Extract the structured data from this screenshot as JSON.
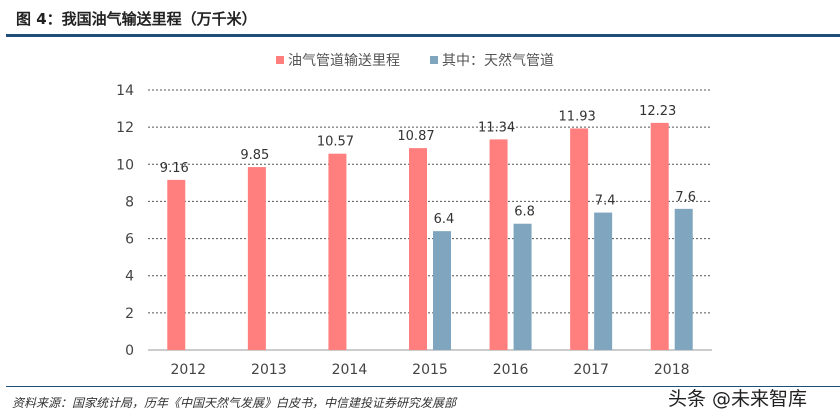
{
  "title": "图 4：我国油气输送里程（万千米）",
  "source": "资料来源：国家统计局，历年《中国天然气发展》白皮书，中信建投证券研究发展部",
  "watermark": "头条 @未来智库",
  "chart_data": {
    "type": "bar",
    "title": "",
    "categories": [
      "2012",
      "2013",
      "2014",
      "2015",
      "2016",
      "2017",
      "2018"
    ],
    "series": [
      {
        "name": "油气管道输送里程",
        "color": "#ff7f7f",
        "values": [
          9.16,
          9.85,
          10.57,
          10.87,
          11.34,
          11.93,
          12.23
        ]
      },
      {
        "name": "其中：天然气管道",
        "color": "#7fa5bf",
        "values": [
          null,
          null,
          null,
          6.4,
          6.8,
          7.4,
          7.6
        ]
      }
    ],
    "ylim": [
      0,
      14
    ],
    "yticks": [
      0,
      2,
      4,
      6,
      8,
      10,
      12,
      14
    ],
    "grid": true,
    "legend": "top"
  }
}
